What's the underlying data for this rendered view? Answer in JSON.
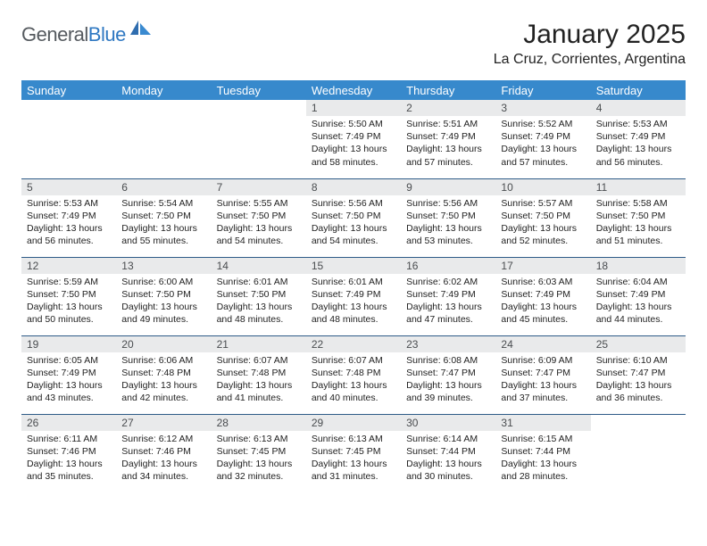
{
  "brand": {
    "part1": "General",
    "part2": "Blue"
  },
  "title": "January 2025",
  "location": "La Cruz, Corrientes, Argentina",
  "colors": {
    "header_bg": "#3789cc",
    "header_fg": "#ffffff",
    "daynum_bg": "#e9eaeb",
    "row_border": "#2f5c88",
    "brand_gray": "#555a5f",
    "brand_blue": "#2f78c2"
  },
  "weekdays": [
    "Sunday",
    "Monday",
    "Tuesday",
    "Wednesday",
    "Thursday",
    "Friday",
    "Saturday"
  ],
  "weeks": [
    [
      {
        "n": "",
        "sr": "",
        "ss": "",
        "dl": "",
        "empty": true
      },
      {
        "n": "",
        "sr": "",
        "ss": "",
        "dl": "",
        "empty": true
      },
      {
        "n": "",
        "sr": "",
        "ss": "",
        "dl": "",
        "empty": true
      },
      {
        "n": "1",
        "sr": "Sunrise: 5:50 AM",
        "ss": "Sunset: 7:49 PM",
        "dl": "Daylight: 13 hours and 58 minutes."
      },
      {
        "n": "2",
        "sr": "Sunrise: 5:51 AM",
        "ss": "Sunset: 7:49 PM",
        "dl": "Daylight: 13 hours and 57 minutes."
      },
      {
        "n": "3",
        "sr": "Sunrise: 5:52 AM",
        "ss": "Sunset: 7:49 PM",
        "dl": "Daylight: 13 hours and 57 minutes."
      },
      {
        "n": "4",
        "sr": "Sunrise: 5:53 AM",
        "ss": "Sunset: 7:49 PM",
        "dl": "Daylight: 13 hours and 56 minutes."
      }
    ],
    [
      {
        "n": "5",
        "sr": "Sunrise: 5:53 AM",
        "ss": "Sunset: 7:49 PM",
        "dl": "Daylight: 13 hours and 56 minutes."
      },
      {
        "n": "6",
        "sr": "Sunrise: 5:54 AM",
        "ss": "Sunset: 7:50 PM",
        "dl": "Daylight: 13 hours and 55 minutes."
      },
      {
        "n": "7",
        "sr": "Sunrise: 5:55 AM",
        "ss": "Sunset: 7:50 PM",
        "dl": "Daylight: 13 hours and 54 minutes."
      },
      {
        "n": "8",
        "sr": "Sunrise: 5:56 AM",
        "ss": "Sunset: 7:50 PM",
        "dl": "Daylight: 13 hours and 54 minutes."
      },
      {
        "n": "9",
        "sr": "Sunrise: 5:56 AM",
        "ss": "Sunset: 7:50 PM",
        "dl": "Daylight: 13 hours and 53 minutes."
      },
      {
        "n": "10",
        "sr": "Sunrise: 5:57 AM",
        "ss": "Sunset: 7:50 PM",
        "dl": "Daylight: 13 hours and 52 minutes."
      },
      {
        "n": "11",
        "sr": "Sunrise: 5:58 AM",
        "ss": "Sunset: 7:50 PM",
        "dl": "Daylight: 13 hours and 51 minutes."
      }
    ],
    [
      {
        "n": "12",
        "sr": "Sunrise: 5:59 AM",
        "ss": "Sunset: 7:50 PM",
        "dl": "Daylight: 13 hours and 50 minutes."
      },
      {
        "n": "13",
        "sr": "Sunrise: 6:00 AM",
        "ss": "Sunset: 7:50 PM",
        "dl": "Daylight: 13 hours and 49 minutes."
      },
      {
        "n": "14",
        "sr": "Sunrise: 6:01 AM",
        "ss": "Sunset: 7:50 PM",
        "dl": "Daylight: 13 hours and 48 minutes."
      },
      {
        "n": "15",
        "sr": "Sunrise: 6:01 AM",
        "ss": "Sunset: 7:49 PM",
        "dl": "Daylight: 13 hours and 48 minutes."
      },
      {
        "n": "16",
        "sr": "Sunrise: 6:02 AM",
        "ss": "Sunset: 7:49 PM",
        "dl": "Daylight: 13 hours and 47 minutes."
      },
      {
        "n": "17",
        "sr": "Sunrise: 6:03 AM",
        "ss": "Sunset: 7:49 PM",
        "dl": "Daylight: 13 hours and 45 minutes."
      },
      {
        "n": "18",
        "sr": "Sunrise: 6:04 AM",
        "ss": "Sunset: 7:49 PM",
        "dl": "Daylight: 13 hours and 44 minutes."
      }
    ],
    [
      {
        "n": "19",
        "sr": "Sunrise: 6:05 AM",
        "ss": "Sunset: 7:49 PM",
        "dl": "Daylight: 13 hours and 43 minutes."
      },
      {
        "n": "20",
        "sr": "Sunrise: 6:06 AM",
        "ss": "Sunset: 7:48 PM",
        "dl": "Daylight: 13 hours and 42 minutes."
      },
      {
        "n": "21",
        "sr": "Sunrise: 6:07 AM",
        "ss": "Sunset: 7:48 PM",
        "dl": "Daylight: 13 hours and 41 minutes."
      },
      {
        "n": "22",
        "sr": "Sunrise: 6:07 AM",
        "ss": "Sunset: 7:48 PM",
        "dl": "Daylight: 13 hours and 40 minutes."
      },
      {
        "n": "23",
        "sr": "Sunrise: 6:08 AM",
        "ss": "Sunset: 7:47 PM",
        "dl": "Daylight: 13 hours and 39 minutes."
      },
      {
        "n": "24",
        "sr": "Sunrise: 6:09 AM",
        "ss": "Sunset: 7:47 PM",
        "dl": "Daylight: 13 hours and 37 minutes."
      },
      {
        "n": "25",
        "sr": "Sunrise: 6:10 AM",
        "ss": "Sunset: 7:47 PM",
        "dl": "Daylight: 13 hours and 36 minutes."
      }
    ],
    [
      {
        "n": "26",
        "sr": "Sunrise: 6:11 AM",
        "ss": "Sunset: 7:46 PM",
        "dl": "Daylight: 13 hours and 35 minutes."
      },
      {
        "n": "27",
        "sr": "Sunrise: 6:12 AM",
        "ss": "Sunset: 7:46 PM",
        "dl": "Daylight: 13 hours and 34 minutes."
      },
      {
        "n": "28",
        "sr": "Sunrise: 6:13 AM",
        "ss": "Sunset: 7:45 PM",
        "dl": "Daylight: 13 hours and 32 minutes."
      },
      {
        "n": "29",
        "sr": "Sunrise: 6:13 AM",
        "ss": "Sunset: 7:45 PM",
        "dl": "Daylight: 13 hours and 31 minutes."
      },
      {
        "n": "30",
        "sr": "Sunrise: 6:14 AM",
        "ss": "Sunset: 7:44 PM",
        "dl": "Daylight: 13 hours and 30 minutes."
      },
      {
        "n": "31",
        "sr": "Sunrise: 6:15 AM",
        "ss": "Sunset: 7:44 PM",
        "dl": "Daylight: 13 hours and 28 minutes."
      },
      {
        "n": "",
        "sr": "",
        "ss": "",
        "dl": "",
        "empty": true
      }
    ]
  ]
}
